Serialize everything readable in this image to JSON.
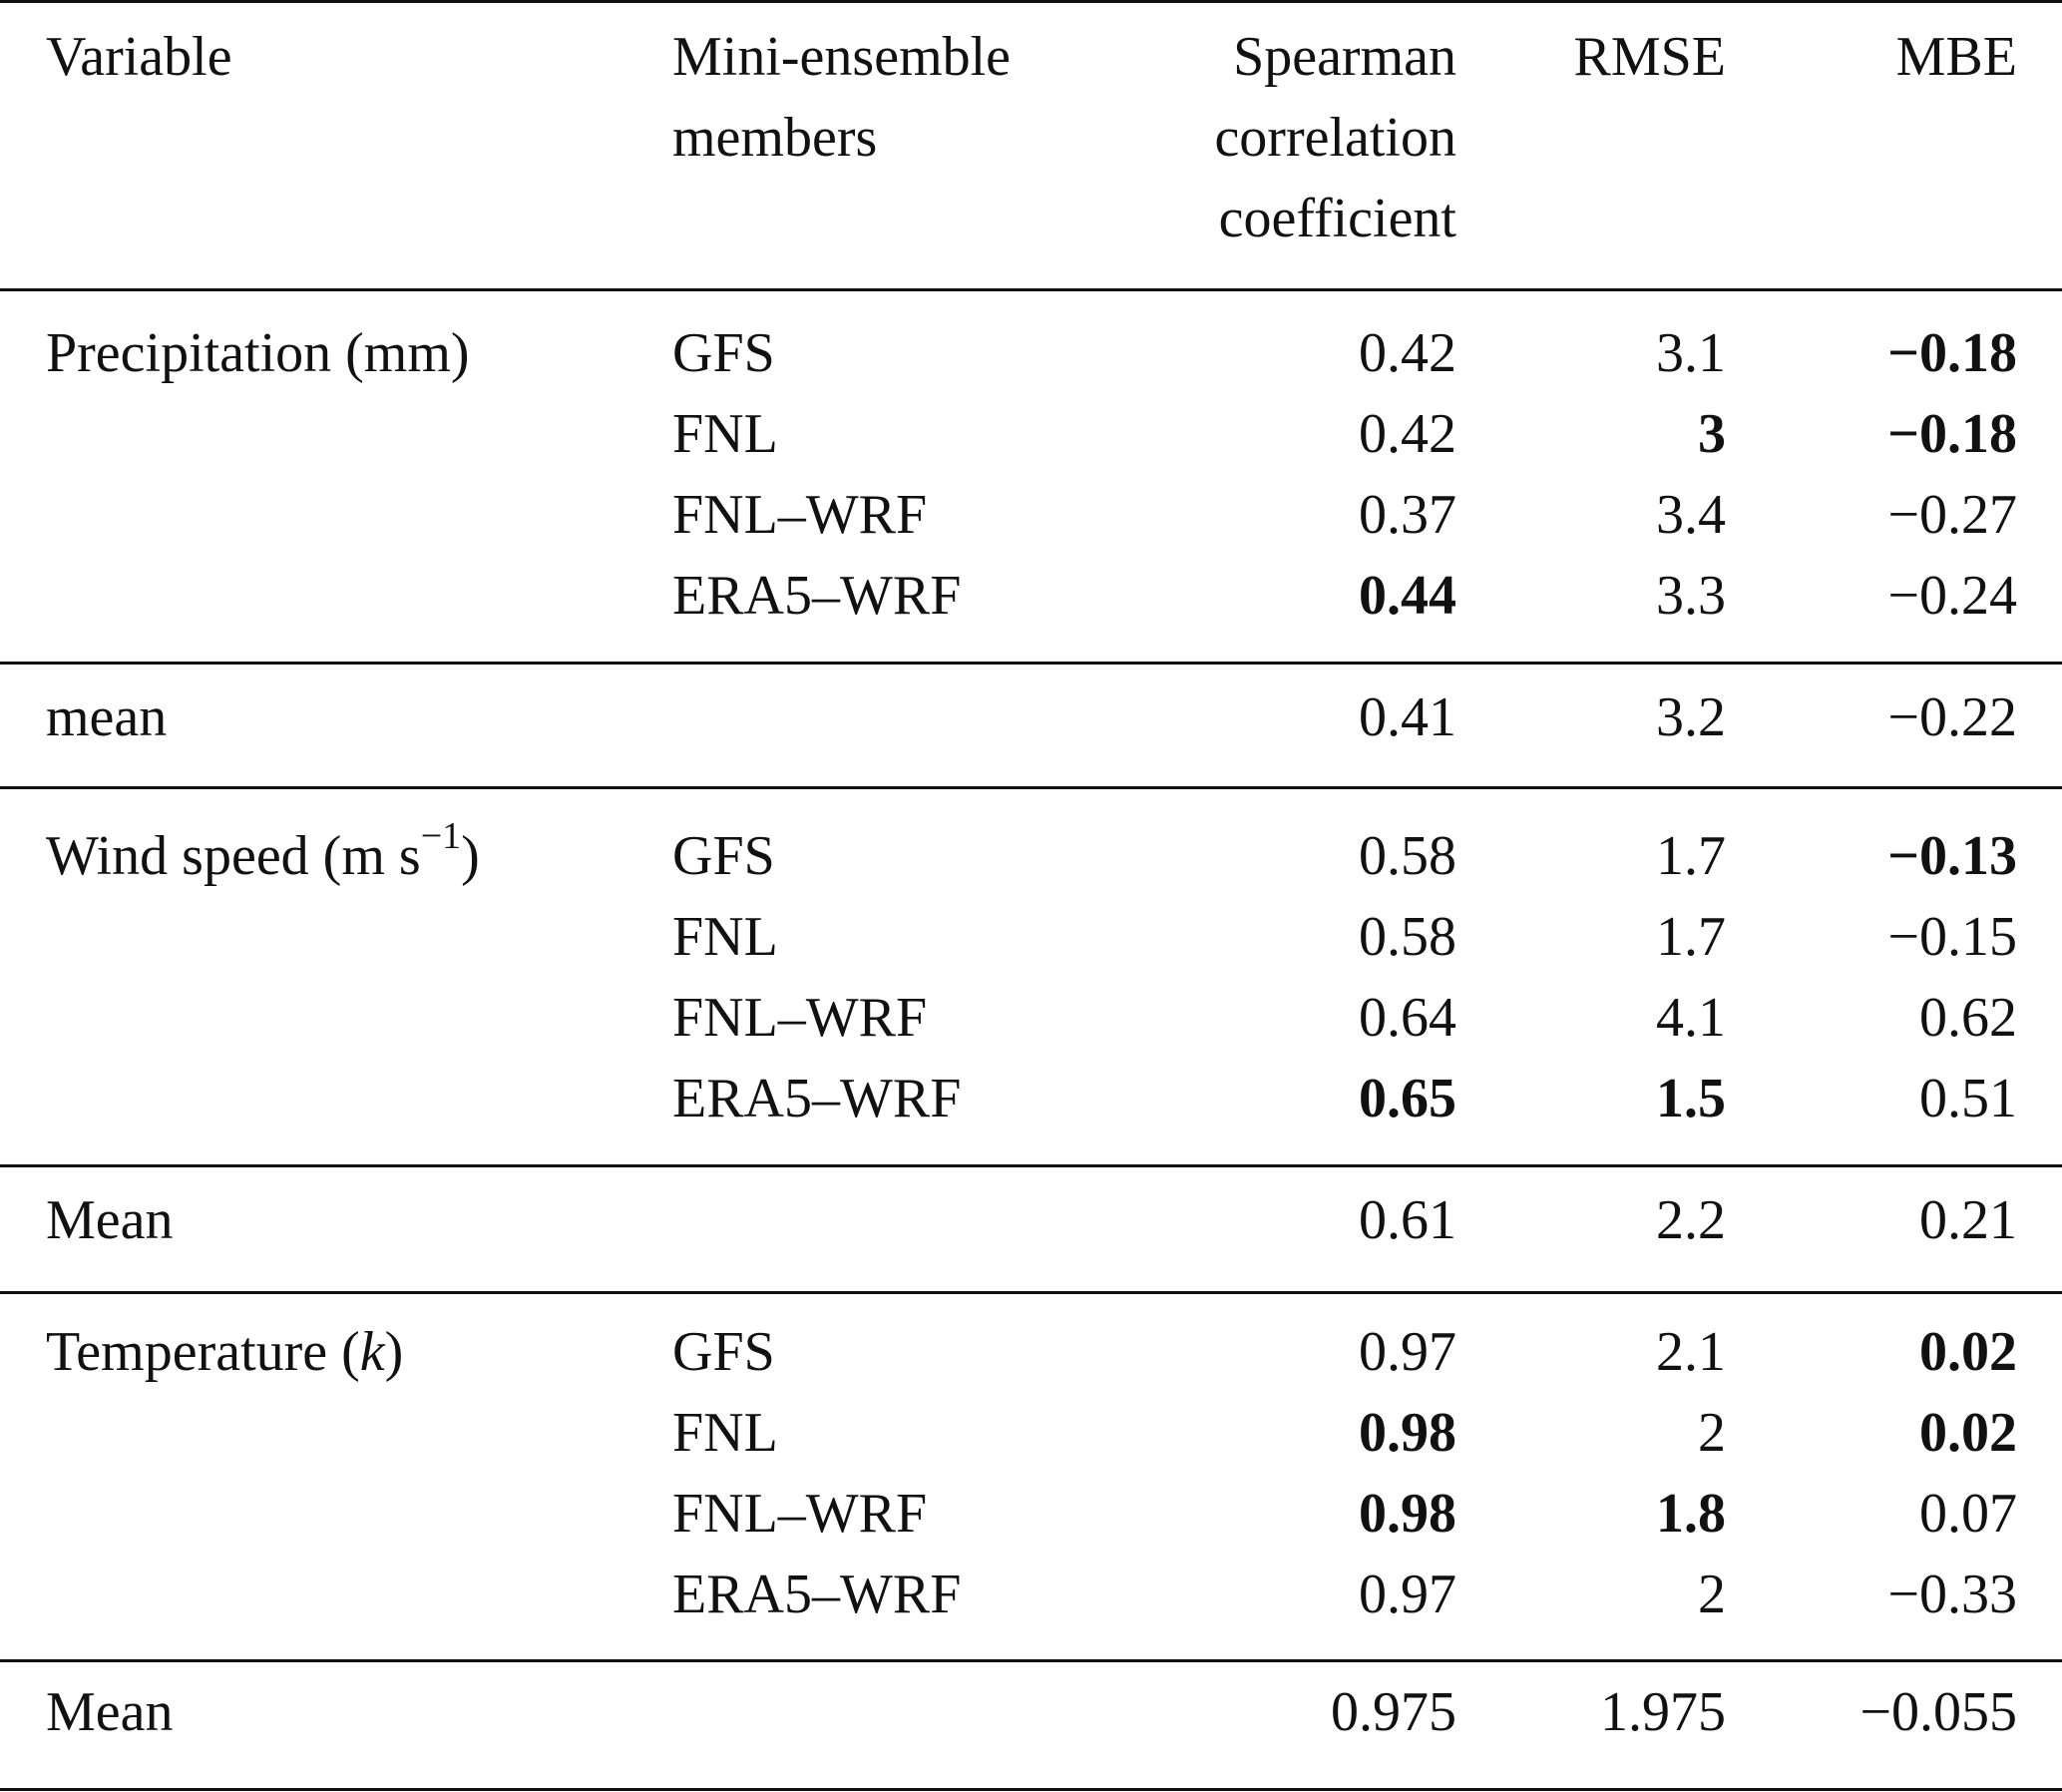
{
  "table": {
    "headers": {
      "variable": "Variable",
      "members_line1": "Mini-ensemble",
      "members_line2": "members",
      "spearman_line1": "Spearman",
      "spearman_line2": "correlation",
      "spearman_line3": "coefficient",
      "rmse": "RMSE",
      "mbe": "MBE"
    },
    "groups": [
      {
        "variable": "Precipitation (mm)",
        "rows": [
          {
            "member": "GFS",
            "spearman": "0.42",
            "rmse": "3.1",
            "mbe": "−0.18",
            "bold": {
              "spearman": false,
              "rmse": false,
              "mbe": true
            }
          },
          {
            "member": "FNL",
            "spearman": "0.42",
            "rmse": "3",
            "mbe": "−0.18",
            "bold": {
              "spearman": false,
              "rmse": true,
              "mbe": true
            }
          },
          {
            "member": "FNL–WRF",
            "spearman": "0.37",
            "rmse": "3.4",
            "mbe": "−0.27",
            "bold": {
              "spearman": false,
              "rmse": false,
              "mbe": false
            }
          },
          {
            "member": "ERA5–WRF",
            "spearman": "0.44",
            "rmse": "3.3",
            "mbe": "−0.24",
            "bold": {
              "spearman": true,
              "rmse": false,
              "mbe": false
            }
          }
        ],
        "mean": {
          "label": "mean",
          "spearman": "0.41",
          "rmse": "3.2",
          "mbe": "−0.22"
        }
      },
      {
        "variable_base": "Wind speed (m s",
        "variable_sup": "−1",
        "variable_tail": ")",
        "rows": [
          {
            "member": "GFS",
            "spearman": "0.58",
            "rmse": "1.7",
            "mbe": "−0.13",
            "bold": {
              "spearman": false,
              "rmse": false,
              "mbe": true
            }
          },
          {
            "member": "FNL",
            "spearman": "0.58",
            "rmse": "1.7",
            "mbe": "−0.15",
            "bold": {
              "spearman": false,
              "rmse": false,
              "mbe": false
            }
          },
          {
            "member": "FNL–WRF",
            "spearman": "0.64",
            "rmse": "4.1",
            "mbe": "0.62",
            "bold": {
              "spearman": false,
              "rmse": false,
              "mbe": false
            }
          },
          {
            "member": "ERA5–WRF",
            "spearman": "0.65",
            "rmse": "1.5",
            "mbe": "0.51",
            "bold": {
              "spearman": true,
              "rmse": true,
              "mbe": false
            }
          }
        ],
        "mean": {
          "label": "Mean",
          "spearman": "0.61",
          "rmse": "2.2",
          "mbe": "0.21"
        }
      },
      {
        "variable_base": "Temperature (",
        "variable_italic": "k",
        "variable_tail": ")",
        "rows": [
          {
            "member": "GFS",
            "spearman": "0.97",
            "rmse": "2.1",
            "mbe": "0.02",
            "bold": {
              "spearman": false,
              "rmse": false,
              "mbe": true
            }
          },
          {
            "member": "FNL",
            "spearman": "0.98",
            "rmse": "2",
            "mbe": "0.02",
            "bold": {
              "spearman": true,
              "rmse": false,
              "mbe": true
            }
          },
          {
            "member": "FNL–WRF",
            "spearman": "0.98",
            "rmse": "1.8",
            "mbe": "0.07",
            "bold": {
              "spearman": true,
              "rmse": true,
              "mbe": false
            }
          },
          {
            "member": "ERA5–WRF",
            "spearman": "0.97",
            "rmse": "2",
            "mbe": "−0.33",
            "bold": {
              "spearman": false,
              "rmse": false,
              "mbe": false
            }
          }
        ],
        "mean": {
          "label": "Mean",
          "spearman": "0.975",
          "rmse": "1.975",
          "mbe": "−0.055"
        }
      }
    ]
  }
}
